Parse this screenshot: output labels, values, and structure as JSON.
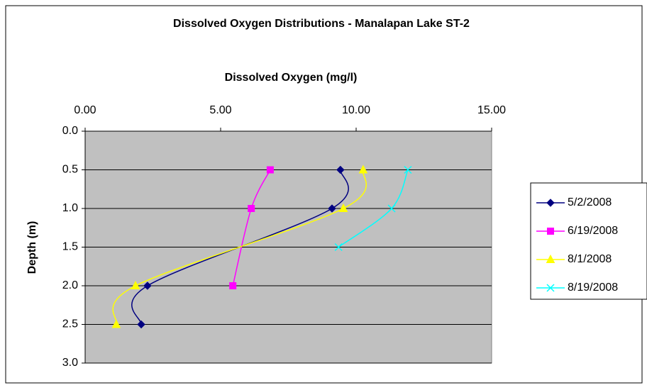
{
  "chart_data": {
    "type": "scatter",
    "title": "Dissolved Oxygen Distributions - Manalapan Lake ST-2",
    "x_label": "Dissolved Oxygen (mg/l)",
    "y_label": "Depth (m)",
    "xlim": [
      0,
      15
    ],
    "xticks": [
      {
        "value": 0,
        "label": "0.00"
      },
      {
        "value": 5,
        "label": "5.00"
      },
      {
        "value": 10,
        "label": "10.00"
      },
      {
        "value": 15,
        "label": "15.00"
      }
    ],
    "ylim": [
      0,
      3
    ],
    "yticks": [
      {
        "value": 0,
        "label": "0.0"
      },
      0.5,
      {
        "value": 1,
        "label": "1.0"
      },
      1.5,
      {
        "value": 2,
        "label": "2.0"
      },
      2.5,
      {
        "value": 3,
        "label": "3.0"
      }
    ],
    "y_inverted": true,
    "x_axis_position": "top",
    "grid": true,
    "smooth": true,
    "plot_background": "#c0c0c0",
    "legend_position": "right",
    "series": [
      {
        "name": "5/2/2008",
        "color": "#000080",
        "marker": "diamond",
        "x": [
          9.42,
          9.11,
          2.3,
          2.07
        ],
        "values": [
          0.5,
          1.0,
          2.0,
          2.5
        ]
      },
      {
        "name": "6/19/2008",
        "color": "#ff00ff",
        "marker": "square",
        "x": [
          6.83,
          6.13,
          5.45
        ],
        "values": [
          0.5,
          1.0,
          2.0
        ]
      },
      {
        "name": "8/1/2008",
        "color": "#ffff00",
        "marker": "triangle",
        "x": [
          10.26,
          9.53,
          1.86,
          1.15
        ],
        "values": [
          0.5,
          1.0,
          2.0,
          2.5
        ]
      },
      {
        "name": "8/19/2008",
        "color": "#00ffff",
        "marker": "x",
        "x": [
          11.91,
          11.31,
          9.35
        ],
        "values": [
          0.5,
          1.0,
          1.5
        ]
      }
    ]
  }
}
